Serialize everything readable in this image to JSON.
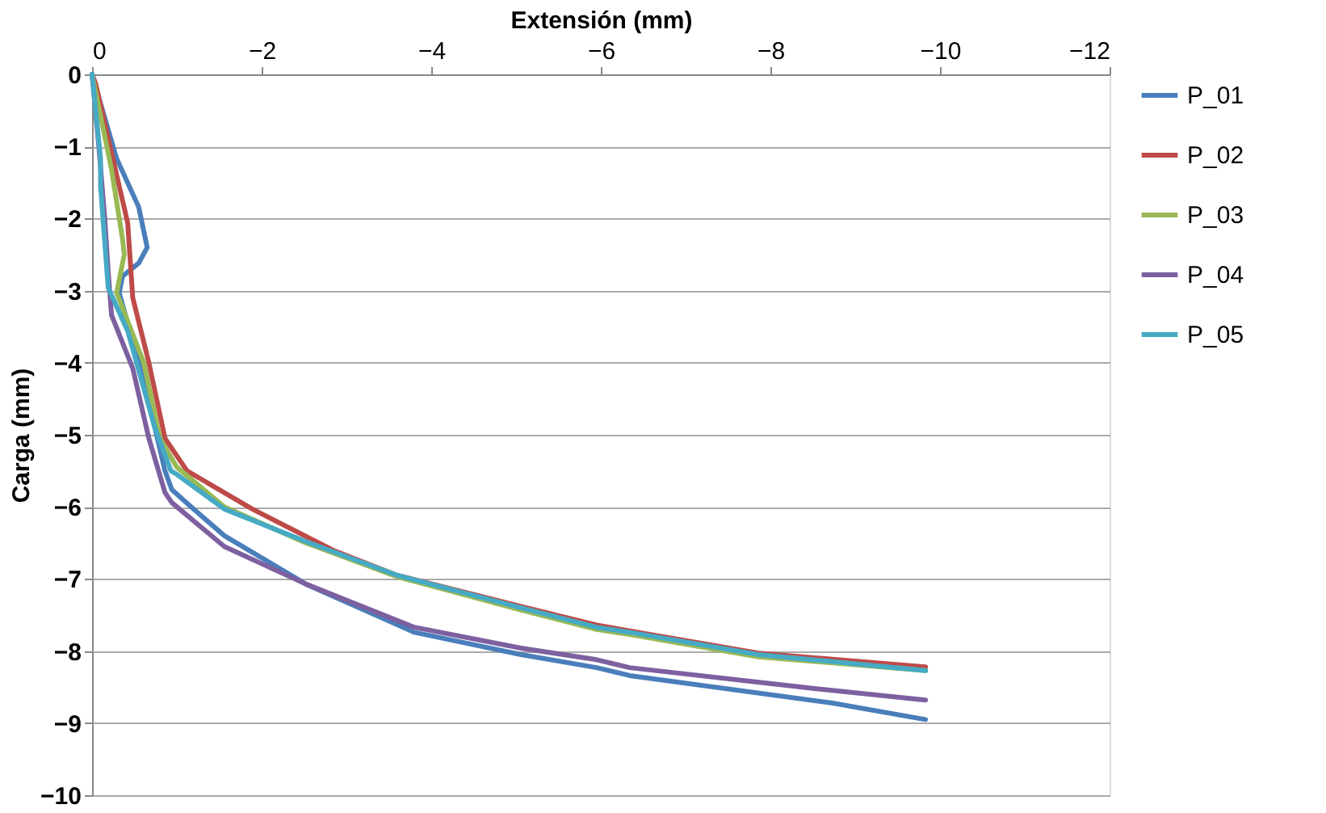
{
  "chart_data": {
    "type": "line",
    "xlabel": "Extensión (mm)",
    "ylabel": "Carga (mm)",
    "xlim": [
      0,
      -12
    ],
    "xticks": [
      0,
      -2,
      -4,
      -6,
      -8,
      -10,
      -12
    ],
    "ylim": [
      -10,
      0
    ],
    "yticks": [
      0,
      -1,
      -2,
      -3,
      -4,
      -5,
      -6,
      -7,
      -8,
      -9,
      -10
    ],
    "grid": "y",
    "legend": "right",
    "marker": "none",
    "line_style": "solid",
    "series": [
      {
        "name": "P_01",
        "color": "#4a7ebb",
        "x": [
          0,
          -0.29,
          -0.55,
          -0.65,
          -0.55,
          -0.36,
          -0.32,
          -0.55,
          -0.74,
          -0.86,
          -0.94,
          -1.12,
          -1.56,
          -2.52,
          -3.8,
          -5.06,
          -5.95,
          -6.34,
          -8.72,
          -9.83
        ],
        "values": [
          0,
          -1.17,
          -1.84,
          -2.4,
          -2.62,
          -2.8,
          -3.03,
          -4.0,
          -4.9,
          -5.5,
          -5.76,
          -5.95,
          -6.4,
          -7.07,
          -7.74,
          -8.05,
          -8.23,
          -8.34,
          -8.72,
          -8.95
        ]
      },
      {
        "name": "P_02",
        "color": "#be4b48",
        "x": [
          0,
          -0.04,
          -0.42,
          -0.48,
          -0.67,
          -0.86,
          -1.12,
          -1.89,
          -2.84,
          -3.6,
          -5.06,
          -5.95,
          -6.34,
          -7.86,
          -9.83
        ],
        "values": [
          0,
          -0.12,
          -2.06,
          -3.1,
          -4.0,
          -5.05,
          -5.5,
          -6.03,
          -6.6,
          -6.95,
          -7.38,
          -7.64,
          -7.72,
          -8.03,
          -8.22
        ]
      },
      {
        "name": "P_03",
        "color": "#98b954",
        "x": [
          0,
          -0.23,
          -0.36,
          -0.38,
          -0.29,
          -0.61,
          -0.8,
          -1.0,
          -1.56,
          -2.52,
          -3.6,
          -5.06,
          -5.95,
          -6.34,
          -7.86,
          -9.83
        ],
        "values": [
          0,
          -1.32,
          -2.29,
          -2.5,
          -3.03,
          -4.0,
          -5.05,
          -5.45,
          -6.0,
          -6.5,
          -6.97,
          -7.43,
          -7.7,
          -7.77,
          -8.08,
          -8.27
        ]
      },
      {
        "name": "P_04",
        "color": "#7d60a0",
        "x": [
          0,
          -0.08,
          -0.15,
          -0.19,
          -0.23,
          -0.48,
          -0.67,
          -0.86,
          -0.94,
          -1.56,
          -2.52,
          -3.8,
          -5.06,
          -5.95,
          -6.34,
          -8.52,
          -9.83
        ],
        "values": [
          0,
          -1.0,
          -2.0,
          -2.73,
          -3.34,
          -4.08,
          -5.05,
          -5.8,
          -5.94,
          -6.55,
          -7.07,
          -7.67,
          -7.96,
          -8.12,
          -8.23,
          -8.52,
          -8.68
        ]
      },
      {
        "name": "P_05",
        "color": "#46aac5",
        "x": [
          0,
          -0.1,
          -0.1,
          -0.19,
          -0.42,
          -0.74,
          -0.93,
          -1.0,
          -1.56,
          -2.52,
          -3.6,
          -5.06,
          -5.95,
          -6.34,
          -7.86,
          -9.83
        ],
        "values": [
          0,
          -1.17,
          -1.55,
          -2.96,
          -3.56,
          -4.9,
          -5.5,
          -5.55,
          -6.03,
          -6.48,
          -6.95,
          -7.4,
          -7.67,
          -7.74,
          -8.05,
          -8.27
        ]
      }
    ]
  }
}
